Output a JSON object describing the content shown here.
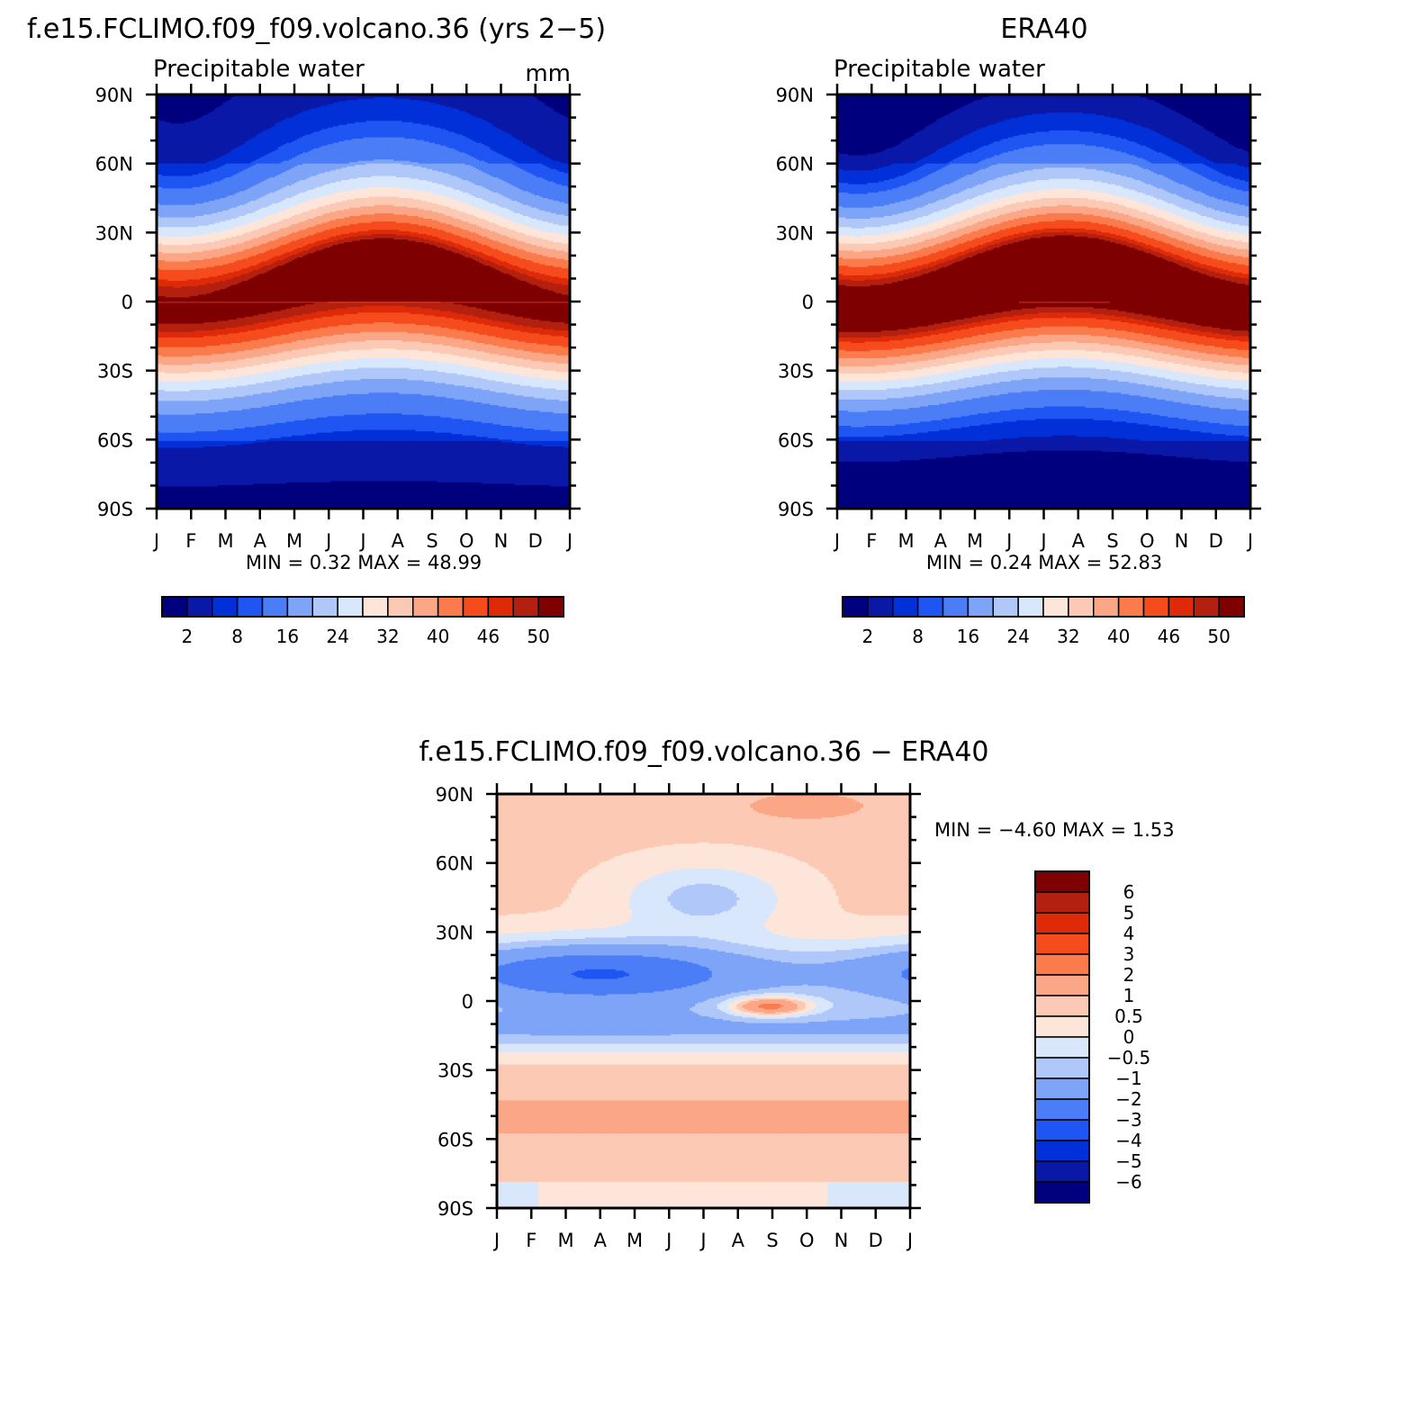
{
  "months": [
    "J",
    "F",
    "M",
    "A",
    "M",
    "J",
    "J",
    "A",
    "S",
    "O",
    "N",
    "D",
    "J"
  ],
  "lat_labels": [
    "90N",
    "60N",
    "30N",
    "0",
    "30S",
    "60S",
    "90S"
  ],
  "panels": [
    {
      "id": "model",
      "title": "f.e15.FCLIMO.f09_f09.volcano.36 (yrs 2−5)",
      "subtitle": "Precipitable water",
      "units": "mm",
      "min_max": "MIN =    0.32  MAX =    48.99",
      "min": 0.32,
      "max": 48.99,
      "band_width": 1.0
    },
    {
      "id": "era40",
      "title": "ERA40",
      "subtitle": "Precipitable water",
      "units": "",
      "min_max": "MIN =    0.24  MAX =    52.83",
      "min": 0.24,
      "max": 52.83,
      "band_width": 1.0
    }
  ],
  "diff_panel": {
    "title": "f.e15.FCLIMO.f09_f09.volcano.36  −  ERA40",
    "min_max": "MIN =   −4.60  MAX =     1.53",
    "min": -4.6,
    "max": 1.53
  },
  "colorbar_abs": {
    "colors": [
      "#00007f",
      "#0a18a8",
      "#0230d8",
      "#1f55f2",
      "#4a7df6",
      "#7ea4f8",
      "#b0c8f9",
      "#d8e7fb",
      "#fde6d9",
      "#fccab4",
      "#fba787",
      "#fb7b4d",
      "#f64b1c",
      "#df2a0a",
      "#b4200f",
      "#7f0000"
    ],
    "labels": [
      "2",
      "8",
      "16",
      "24",
      "32",
      "40",
      "46",
      "50"
    ]
  },
  "colorbar_diff": {
    "colors": [
      "#7f0000",
      "#b4200f",
      "#df2a0a",
      "#f64b1c",
      "#fb7b4d",
      "#fba787",
      "#fccab4",
      "#fde6d9",
      "#d8e7fb",
      "#b0c8f9",
      "#7ea4f8",
      "#4a7df6",
      "#1f55f2",
      "#0230d8",
      "#0a18a8",
      "#00007f"
    ],
    "labels": [
      "6",
      "5",
      "4",
      "3",
      "2",
      "1",
      "0.5",
      "0",
      "−0.5",
      "−1",
      "−2",
      "−3",
      "−4",
      "−5",
      "−6"
    ]
  },
  "chart_data": [
    {
      "type": "heatmap",
      "title": "f.e15.FCLIMO.f09_f09.volcano.36 (yrs 2−5)",
      "subtitle": "Precipitable water",
      "units": "mm",
      "x": "month (Jan–Jan)",
      "y": "latitude (90S–90N)",
      "contour_levels": [
        2,
        4,
        6,
        8,
        12,
        16,
        20,
        24,
        28,
        32,
        36,
        40,
        44,
        46,
        48,
        50
      ],
      "min": 0.32,
      "max": 48.99
    },
    {
      "type": "heatmap",
      "title": "ERA40",
      "subtitle": "Precipitable water",
      "contour_levels": [
        2,
        4,
        6,
        8,
        12,
        16,
        20,
        24,
        28,
        32,
        36,
        40,
        44,
        46,
        48,
        50
      ],
      "min": 0.24,
      "max": 52.83
    },
    {
      "type": "heatmap",
      "title": "f.e15.FCLIMO.f09_f09.volcano.36 − ERA40",
      "contour_levels": [
        -6,
        -5,
        -4,
        -3,
        -2,
        -1,
        -0.5,
        0,
        0.5,
        1,
        2,
        3,
        4,
        5,
        6
      ],
      "min": -4.6,
      "max": 1.53
    }
  ]
}
